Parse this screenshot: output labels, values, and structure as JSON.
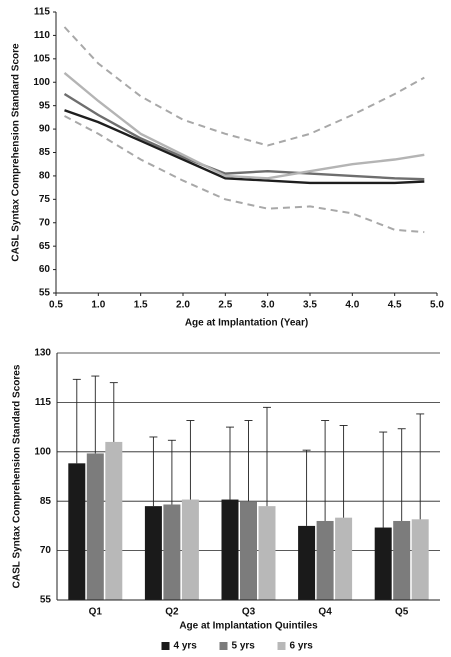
{
  "chart_data": [
    {
      "type": "line",
      "x_label": "Age at Implantation (Year)",
      "y_label": "CASL Syntax Comprehension Standard Score",
      "x": [
        0.6,
        1.0,
        1.5,
        2.0,
        2.5,
        3.0,
        3.5,
        4.0,
        4.5,
        4.85
      ],
      "series": [
        {
          "color": "#a8a8a8",
          "dashed": true,
          "values": [
            111.8,
            104,
            97,
            92,
            89,
            86.5,
            89,
            93,
            97.5,
            101
          ]
        },
        {
          "color": "#a8a8a8",
          "dashed": true,
          "values": [
            92.8,
            89,
            83.5,
            79,
            75,
            73,
            73.5,
            72,
            68.5,
            68
          ]
        },
        {
          "color": "#1e1e1e",
          "dashed": false,
          "values": [
            94,
            91.5,
            87.5,
            83.5,
            79.5,
            79,
            78.5,
            78.5,
            78.5,
            78.8
          ]
        },
        {
          "color": "#6e6e6e",
          "dashed": false,
          "values": [
            97.5,
            93,
            88,
            84,
            80.5,
            81,
            80.5,
            80,
            79.5,
            79.3
          ]
        },
        {
          "color": "#b4b4b4",
          "dashed": false,
          "values": [
            102,
            96,
            89,
            84.5,
            80,
            79.5,
            81,
            82.5,
            83.5,
            84.5
          ]
        }
      ],
      "xlim": [
        0.5,
        5.0
      ],
      "xticks": [
        0.5,
        {
          "value": 1.0,
          "label": "1.0"
        },
        1.5,
        {
          "value": 2.0,
          "label": "2.0"
        },
        2.5,
        {
          "value": 3.0,
          "label": "3.0"
        },
        3.5,
        {
          "value": 4.0,
          "label": "4.0"
        },
        4.5,
        {
          "value": 5.0,
          "label": "5.0"
        }
      ],
      "ylim": [
        55,
        115
      ],
      "yticks": [
        55,
        60,
        65,
        70,
        75,
        80,
        85,
        90,
        95,
        100,
        105,
        110,
        115
      ],
      "grid": false
    },
    {
      "type": "bar",
      "x_label": "Age at Implantation Quintiles",
      "y_label": "CASL Syntax Comprehension Standard Scores",
      "categories": [
        "Q1",
        "Q2",
        "Q3",
        "Q4",
        "Q5"
      ],
      "series": [
        {
          "name": "4 yrs",
          "color": "#1a1a1a",
          "values": [
            96.5,
            83.5,
            85.5,
            77.5,
            77
          ],
          "errors": [
            25.5,
            21,
            22,
            23,
            29
          ]
        },
        {
          "name": "5 yrs",
          "color": "#7c7c7c",
          "values": [
            99.5,
            84,
            85,
            79,
            79
          ],
          "errors": [
            23.5,
            19.5,
            24.5,
            30.5,
            28
          ]
        },
        {
          "name": "6 yrs",
          "color": "#b8b8b8",
          "values": [
            103,
            85.5,
            83.5,
            80,
            79.5
          ],
          "errors": [
            18,
            24,
            30,
            28,
            32
          ]
        }
      ],
      "ylim": [
        55,
        130
      ],
      "yticks": [
        55,
        70,
        85,
        100,
        115,
        130
      ],
      "grid": true,
      "legend": "bottom"
    }
  ]
}
